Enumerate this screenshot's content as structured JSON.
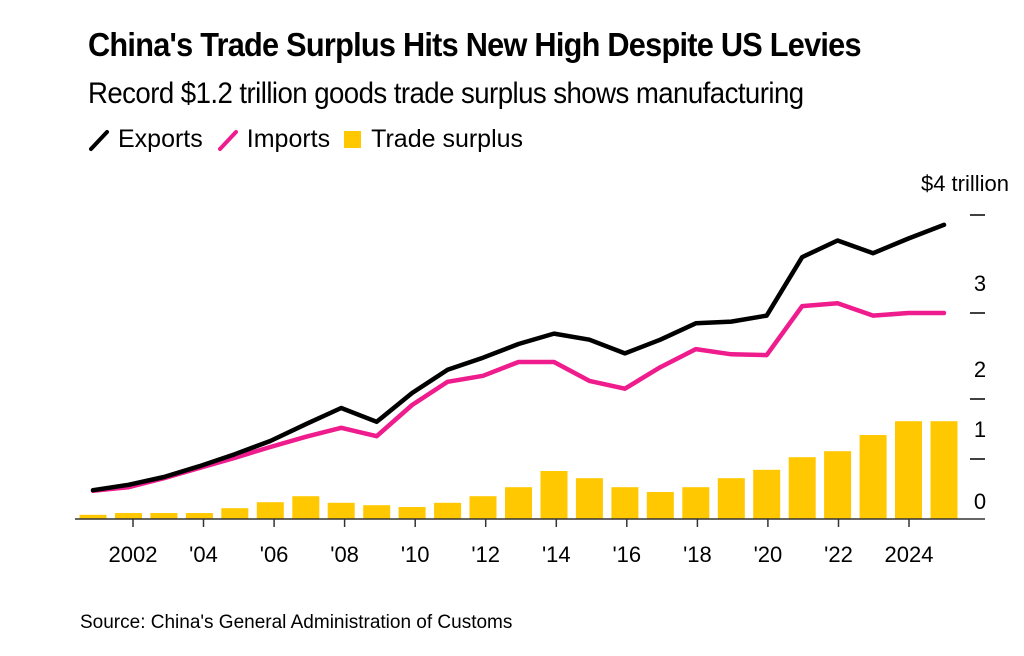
{
  "header": {
    "title": "China's Trade Surplus Hits New High Despite US Levies",
    "subtitle": "Record $1.2 trillion goods trade surplus shows manufacturing"
  },
  "legend": [
    {
      "label": "Exports",
      "color": "#000000",
      "shape": "line"
    },
    {
      "label": "Imports",
      "color": "#ee1c8c",
      "shape": "line"
    },
    {
      "label": "Trade surplus",
      "color": "#ffc800",
      "shape": "box"
    }
  ],
  "footer": {
    "source": "Source: China's General Administration of Customs"
  },
  "chart_data": {
    "type": "bar+line",
    "title": "China's Trade Surplus Hits New High Despite US Levies",
    "subtitle": "Record $1.2 trillion goods trade surplus shows manufacturing",
    "xlabel": "",
    "ylabel": "",
    "y_unit_label": "$4 trillion",
    "ylim": [
      0,
      4
    ],
    "yticks": [
      0,
      1,
      2,
      3,
      4
    ],
    "ytick_labels": [
      "0",
      "1",
      "2",
      "3",
      "$4 trillion"
    ],
    "y_axis_side": "right",
    "grid": false,
    "legend_position": "top-left",
    "x": [
      2001,
      2002,
      2003,
      2004,
      2005,
      2006,
      2007,
      2008,
      2009,
      2010,
      2011,
      2012,
      2013,
      2014,
      2015,
      2016,
      2017,
      2018,
      2019,
      2020,
      2021,
      2022,
      2023,
      2024,
      2025
    ],
    "xticks": [
      2002,
      2004,
      2006,
      2008,
      2010,
      2012,
      2014,
      2016,
      2018,
      2020,
      2022,
      2024
    ],
    "xtick_labels": [
      "2002",
      "'04",
      "'06",
      "'08",
      "'10",
      "'12",
      "'14",
      "'16",
      "'18",
      "'20",
      "'22",
      "2024"
    ],
    "series": [
      {
        "name": "Exports",
        "type": "line",
        "color": "#000000",
        "values": [
          0.48,
          0.57,
          0.7,
          0.88,
          1.08,
          1.3,
          1.58,
          1.85,
          1.62,
          2.07,
          2.34,
          2.48,
          2.64,
          2.76,
          2.69,
          2.53,
          2.69,
          2.88,
          2.9,
          2.97,
          3.57,
          3.74,
          3.61,
          3.76,
          3.9
        ]
      },
      {
        "name": "Imports",
        "type": "line",
        "color": "#ee1c8c",
        "values": [
          0.47,
          0.53,
          0.68,
          0.85,
          1.02,
          1.2,
          1.37,
          1.52,
          1.38,
          1.9,
          2.2,
          2.27,
          2.43,
          2.43,
          2.21,
          2.12,
          2.37,
          2.58,
          2.52,
          2.51,
          3.07,
          3.1,
          2.97,
          3.0,
          3.0
        ]
      },
      {
        "name": "Trade surplus",
        "type": "bar",
        "color": "#ffc800",
        "values": [
          0.07,
          0.1,
          0.1,
          0.1,
          0.18,
          0.28,
          0.38,
          0.27,
          0.23,
          0.2,
          0.27,
          0.38,
          0.53,
          0.8,
          0.68,
          0.53,
          0.45,
          0.53,
          0.68,
          0.82,
          1.03,
          1.13,
          1.4,
          1.63,
          1.63
        ]
      }
    ]
  }
}
